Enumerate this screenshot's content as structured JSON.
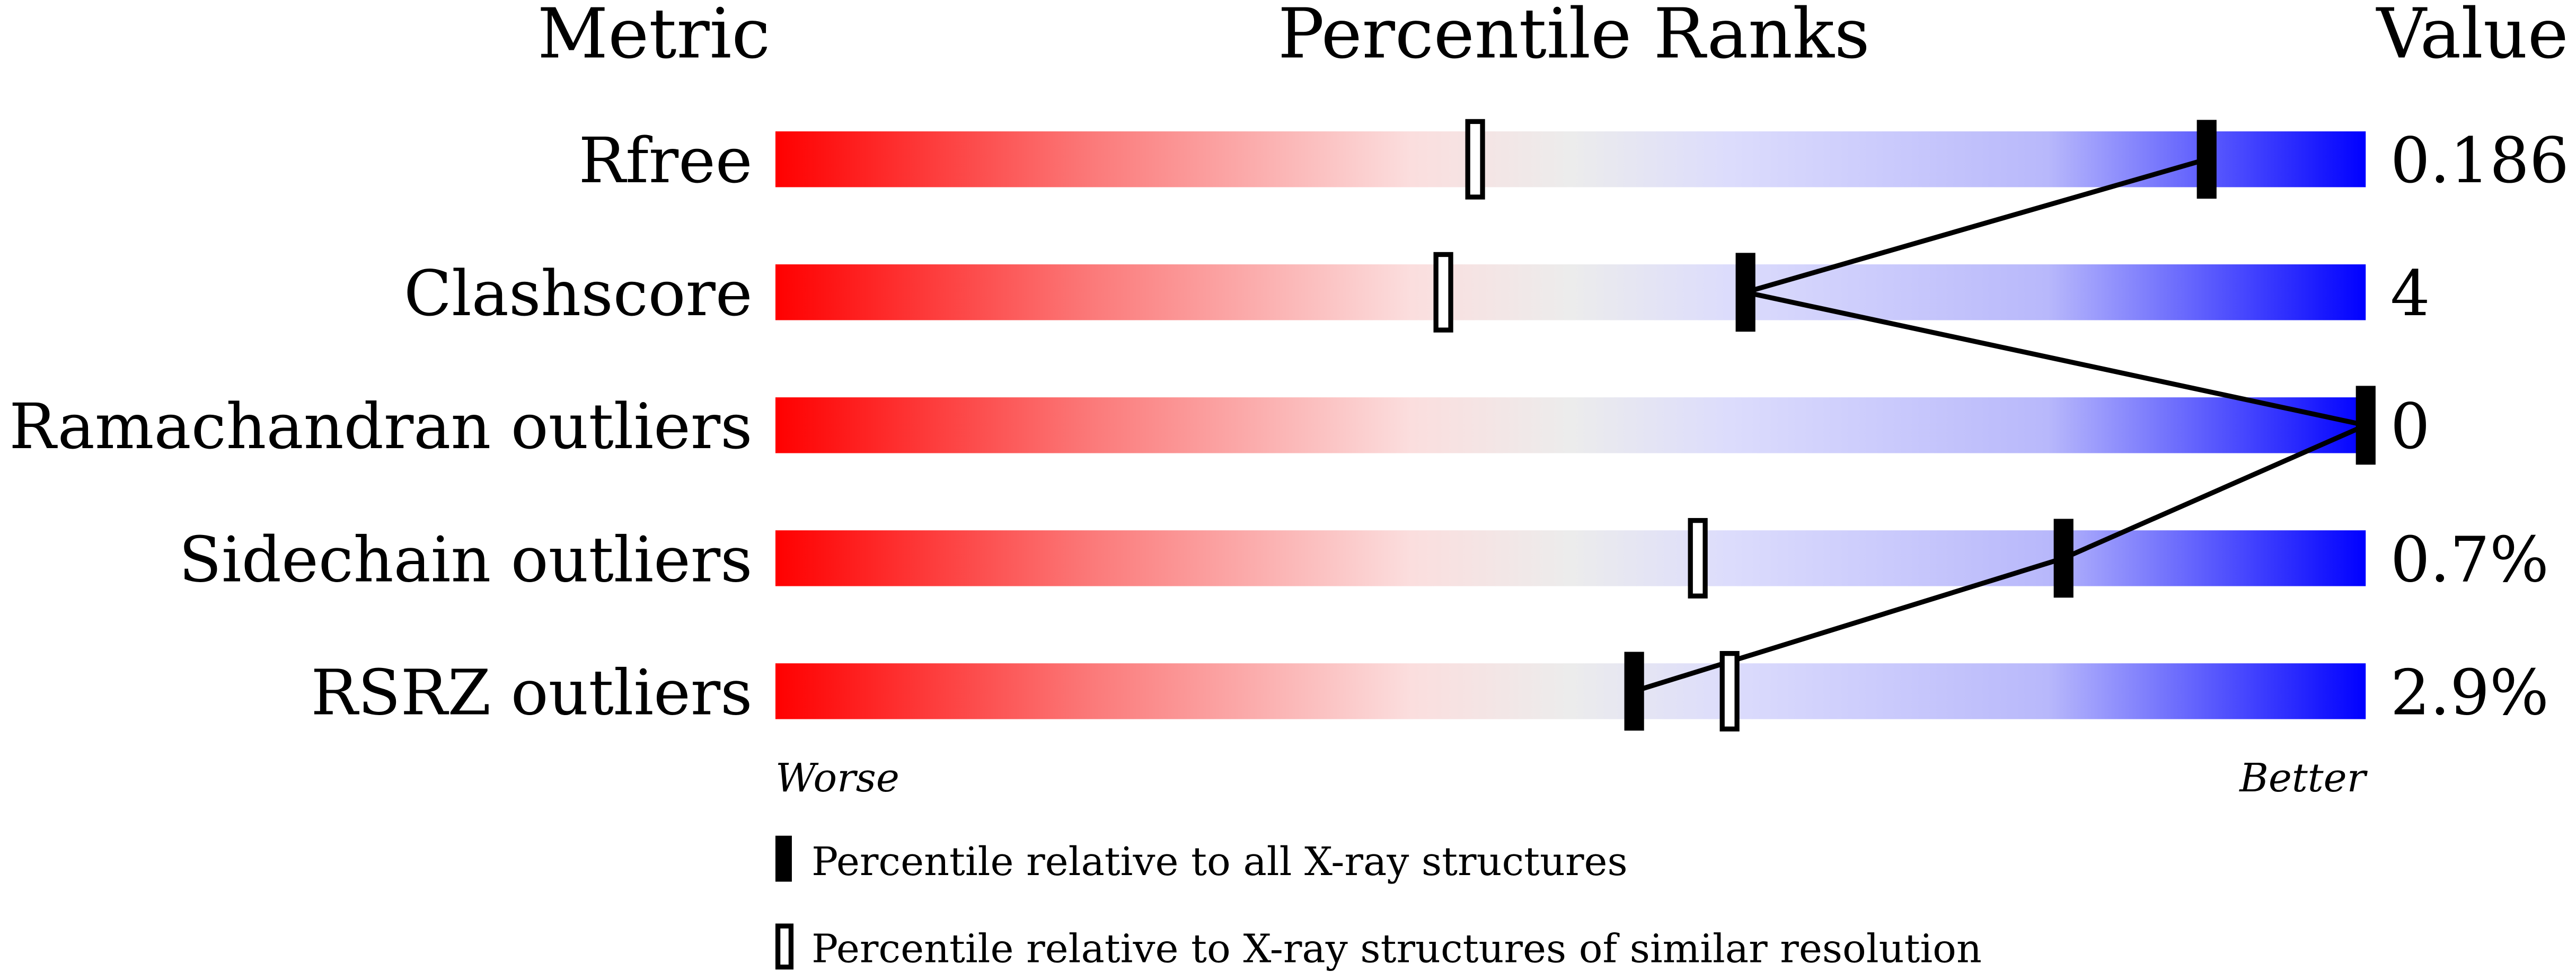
{
  "chart_data": {
    "type": "percentile-slider",
    "headers": {
      "metric": "Metric",
      "ranks": "Percentile Ranks",
      "value": "Value"
    },
    "axis": {
      "min": 0,
      "max": 100,
      "left_label": "Worse",
      "right_label": "Better"
    },
    "rows": [
      {
        "metric": "Rfree",
        "value": "0.186",
        "percentile_all": 90,
        "percentile_similar": 44
      },
      {
        "metric": "Clashscore",
        "value": "4",
        "percentile_all": 61,
        "percentile_similar": 42
      },
      {
        "metric": "Ramachandran outliers",
        "value": "0",
        "percentile_all": 100,
        "percentile_similar": null
      },
      {
        "metric": "Sidechain outliers",
        "value": "0.7%",
        "percentile_all": 81,
        "percentile_similar": 58
      },
      {
        "metric": "RSRZ outliers",
        "value": "2.9%",
        "percentile_all": 54,
        "percentile_similar": 60
      }
    ],
    "legend": [
      {
        "marker": "filled",
        "label": "Percentile relative to all X-ray structures"
      },
      {
        "marker": "open",
        "label": "Percentile relative to X-ray structures of similar resolution"
      }
    ],
    "colors": {
      "worse": "#ff0000",
      "middle": "#eeeeee",
      "better": "#0000ff"
    }
  }
}
